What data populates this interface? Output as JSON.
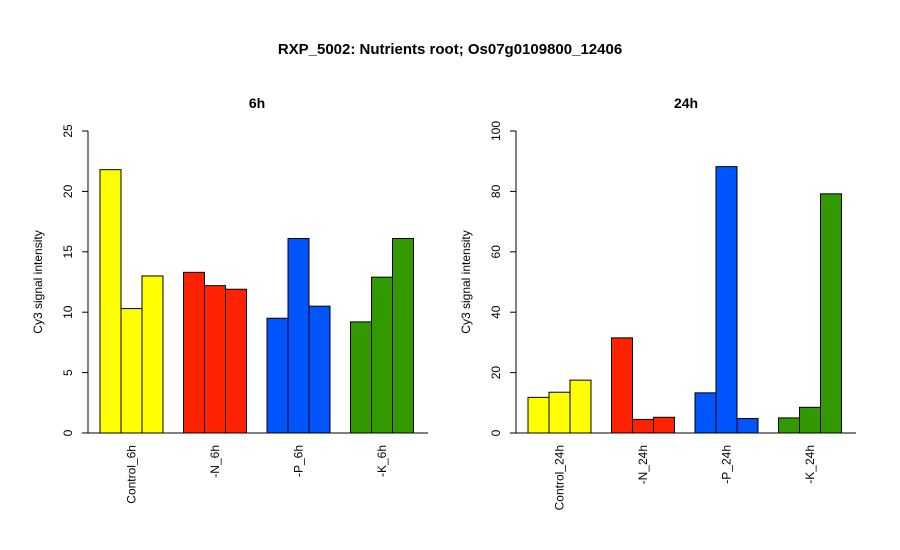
{
  "figure": {
    "title": "RXP_5002: Nutrients root; Os07g0109800_12406"
  },
  "chart_data": [
    {
      "type": "bar",
      "title": "6h",
      "ylabel": "Cy3 signal intensity",
      "xlabel": "",
      "ylim": [
        0,
        25
      ],
      "yticks": [
        0,
        5,
        10,
        15,
        20,
        25
      ],
      "groups": [
        {
          "label": "Control_6h",
          "color": "#ffff00",
          "values": [
            21.8,
            10.3,
            13.0
          ]
        },
        {
          "label": "-N_6h",
          "color": "#ff2200",
          "values": [
            13.3,
            12.2,
            11.9
          ]
        },
        {
          "label": "-P_6h",
          "color": "#0055ff",
          "values": [
            9.5,
            16.1,
            10.5
          ]
        },
        {
          "label": "-K_6h",
          "color": "#339900",
          "values": [
            9.2,
            12.9,
            16.1
          ]
        }
      ]
    },
    {
      "type": "bar",
      "title": "24h",
      "ylabel": "Cy3 signal intensity",
      "xlabel": "",
      "ylim": [
        0,
        100
      ],
      "yticks": [
        0,
        20,
        40,
        60,
        80,
        100
      ],
      "groups": [
        {
          "label": "Control_24h",
          "color": "#ffff00",
          "values": [
            11.8,
            13.5,
            17.5
          ]
        },
        {
          "label": "-N_24h",
          "color": "#ff2200",
          "values": [
            31.5,
            4.5,
            5.2
          ]
        },
        {
          "label": "-P_24h",
          "color": "#0055ff",
          "values": [
            13.3,
            88.2,
            4.8
          ]
        },
        {
          "label": "-K_24h",
          "color": "#339900",
          "values": [
            5.0,
            8.5,
            79.2
          ]
        }
      ]
    }
  ]
}
